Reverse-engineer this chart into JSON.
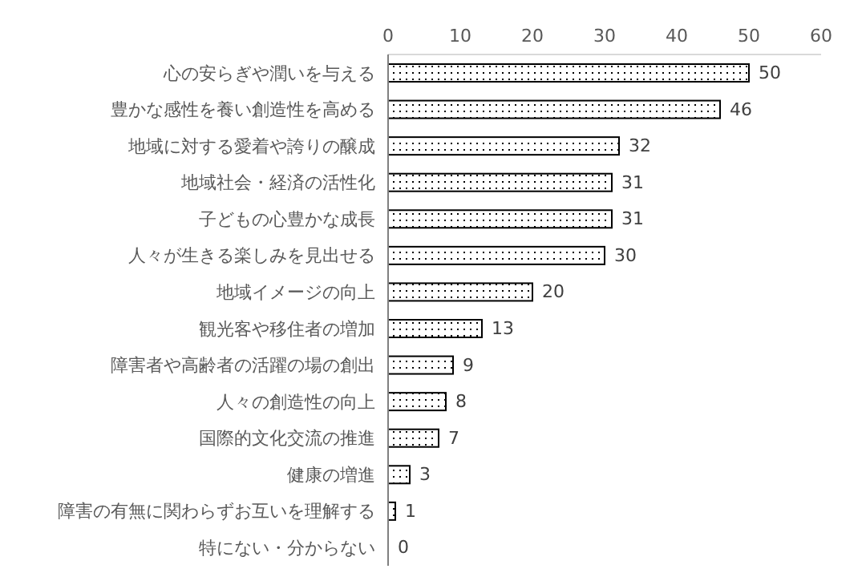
{
  "chart_data": {
    "type": "bar",
    "orientation": "horizontal",
    "categories": [
      "心の安らぎや潤いを与える",
      "豊かな感性を養い創造性を高める",
      "地域に対する愛着や誇りの醸成",
      "地域社会・経済の活性化",
      "子どもの心豊かな成長",
      "人々が生きる楽しみを見出せる",
      "地域イメージの向上",
      "観光客や移住者の増加",
      "障害者や高齢者の活躍の場の創出",
      "人々の創造性の向上",
      "国際的文化交流の推進",
      "健康の増進",
      "障害の有無に関わらずお互いを理解する",
      "特にない・分からない"
    ],
    "values": [
      50,
      46,
      32,
      31,
      31,
      30,
      20,
      13,
      9,
      8,
      7,
      3,
      1,
      0
    ],
    "color": "#000000",
    "xlim": [
      0,
      60
    ],
    "xticks": [
      0,
      10,
      20,
      30,
      40,
      50,
      60
    ],
    "data_labels": true,
    "grid": false
  }
}
